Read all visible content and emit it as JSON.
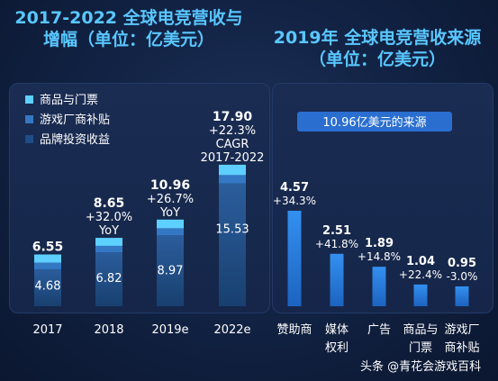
{
  "left_panel": {
    "title_line1": "2017-2022 全球电竞营收与",
    "title_line2": "增幅（单位：亿美元）"
  },
  "right_panel": {
    "title_line1": "2019年 全球电竞营收来源",
    "title_line2": "（单位：亿美元）",
    "banner": "10.96亿美元的来源"
  },
  "watermark": "头条 @青花会游戏百科",
  "colors": {
    "revenue_top": "#5ed0ff",
    "revenue_mid": "#3478c4",
    "revenue_base": "#1f4d88",
    "source_bar": "#2a7fe0",
    "title": "#59c7ff"
  },
  "chart_data": [
    {
      "type": "bar",
      "stacked": true,
      "categories": [
        "2017",
        "2018",
        "2019e",
        "2022e"
      ],
      "legend": [
        "商品与门票",
        "游戏厂商补贴",
        "品牌投资收益"
      ],
      "totals": [
        6.55,
        8.65,
        10.96,
        17.9
      ],
      "base_values": [
        4.68,
        6.82,
        8.97,
        15.53
      ],
      "growth_labels": [
        "",
        "+32.0%",
        "+26.7%",
        "+22.3%"
      ],
      "growth_sublabels": [
        "",
        "YoY",
        "YoY",
        "CAGR"
      ],
      "growth_sublabels2": [
        "",
        "",
        "",
        "2017-2022"
      ],
      "ylim": [
        0,
        18
      ]
    },
    {
      "type": "bar",
      "categories": [
        [
          "赞助商"
        ],
        [
          "媒体",
          "权利"
        ],
        [
          "广告"
        ],
        [
          "商品与",
          "门票"
        ],
        [
          "游戏厂",
          "商补贴"
        ]
      ],
      "values": [
        4.57,
        2.51,
        1.89,
        1.04,
        0.95
      ],
      "growth_labels": [
        "+34.3%",
        "+41.8%",
        "+14.8%",
        "+22.4%",
        "-3.0%"
      ],
      "ylim": [
        0,
        5
      ]
    }
  ]
}
